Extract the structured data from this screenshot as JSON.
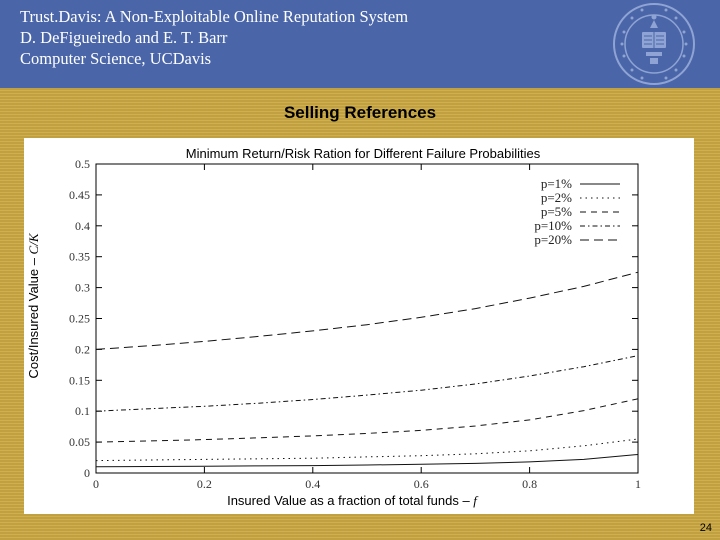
{
  "header": {
    "line1": "Trust.Davis: A Non-Exploitable Online Reputation System",
    "line2": "D. DeFigueiredo and E. T. Barr",
    "line3": "Computer Science, UCDavis"
  },
  "slide": {
    "title": "Selling References",
    "number": "24"
  },
  "seal": {
    "icon": "uc-seal-icon",
    "color": "#8FA4D4"
  },
  "chart_data": {
    "type": "line",
    "title": "Minimum Return/Risk Ration for Different Failure Probabilities",
    "xlabel_text": "Insured Value as a fraction of total funds – ",
    "xlabel_var": "f",
    "ylabel_text": "Cost/Insured Value – ",
    "ylabel_var": "C/K",
    "xlim": [
      0,
      1
    ],
    "ylim": [
      0,
      0.5
    ],
    "xticks": [
      0,
      0.2,
      0.4,
      0.6,
      0.8,
      1
    ],
    "xtick_labels": [
      "0",
      "0.2",
      "0.4",
      "0.6",
      "0.8",
      "1"
    ],
    "yticks": [
      0,
      0.05,
      0.1,
      0.15,
      0.2,
      0.25,
      0.3,
      0.35,
      0.4,
      0.45,
      0.5
    ],
    "ytick_labels": [
      "0",
      "0.05",
      "0.1",
      "0.15",
      "0.2",
      "0.25",
      "0.3",
      "0.35",
      "0.4",
      "0.45",
      "0.5"
    ],
    "legend_position": "top-right",
    "x": [
      0,
      0.1,
      0.2,
      0.3,
      0.4,
      0.5,
      0.6,
      0.7,
      0.8,
      0.9,
      1.0
    ],
    "series": [
      {
        "name": "p=1%",
        "style": "solid",
        "values": [
          0.01,
          0.0105,
          0.011,
          0.0115,
          0.012,
          0.013,
          0.014,
          0.0155,
          0.018,
          0.022,
          0.03
        ]
      },
      {
        "name": "p=2%",
        "style": "dotted",
        "values": [
          0.02,
          0.021,
          0.022,
          0.023,
          0.024,
          0.026,
          0.028,
          0.031,
          0.036,
          0.044,
          0.055
        ]
      },
      {
        "name": "p=5%",
        "style": "dashed",
        "values": [
          0.05,
          0.052,
          0.054,
          0.057,
          0.06,
          0.064,
          0.069,
          0.076,
          0.086,
          0.101,
          0.12
        ]
      },
      {
        "name": "p=10%",
        "style": "dashdot",
        "values": [
          0.1,
          0.104,
          0.108,
          0.113,
          0.119,
          0.126,
          0.134,
          0.144,
          0.157,
          0.172,
          0.19
        ]
      },
      {
        "name": "p=20%",
        "style": "longdash",
        "values": [
          0.2,
          0.206,
          0.213,
          0.221,
          0.23,
          0.24,
          0.252,
          0.266,
          0.283,
          0.302,
          0.325
        ]
      }
    ]
  }
}
